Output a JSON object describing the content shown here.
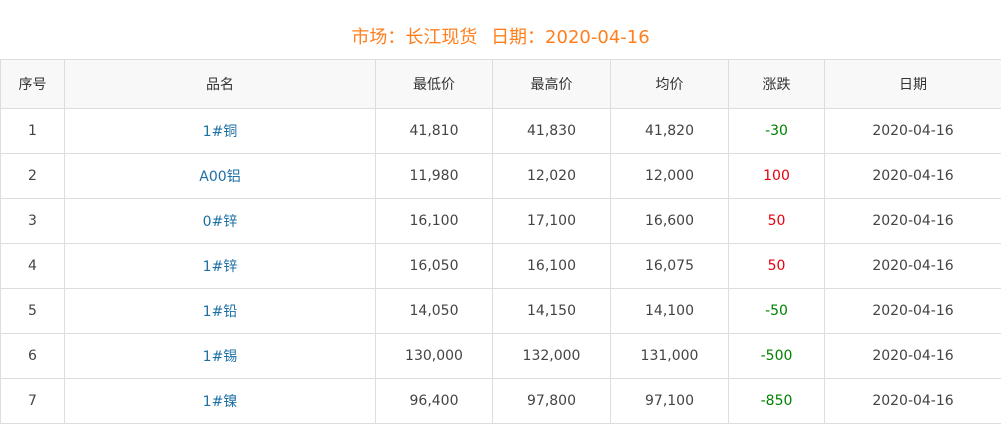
{
  "title": {
    "market": "市场：长江现货",
    "date": "日期：2020-04-16"
  },
  "colors": {
    "title": "#ff7f1e",
    "link": "#1d6fa5",
    "up": "#e4000f",
    "down": "#008000"
  },
  "table": {
    "headers": [
      "序号",
      "品名",
      "最低价",
      "最高价",
      "均价",
      "涨跌",
      "日期"
    ],
    "rows": [
      {
        "index": "1",
        "name": "1#铜",
        "low": "41,810",
        "high": "41,830",
        "avg": "41,820",
        "change": "-30",
        "date": "2020-04-16"
      },
      {
        "index": "2",
        "name": "A00铝",
        "low": "11,980",
        "high": "12,020",
        "avg": "12,000",
        "change": "100",
        "date": "2020-04-16"
      },
      {
        "index": "3",
        "name": "0#锌",
        "low": "16,100",
        "high": "17,100",
        "avg": "16,600",
        "change": "50",
        "date": "2020-04-16"
      },
      {
        "index": "4",
        "name": "1#锌",
        "low": "16,050",
        "high": "16,100",
        "avg": "16,075",
        "change": "50",
        "date": "2020-04-16"
      },
      {
        "index": "5",
        "name": "1#铅",
        "low": "14,050",
        "high": "14,150",
        "avg": "14,100",
        "change": "-50",
        "date": "2020-04-16"
      },
      {
        "index": "6",
        "name": "1#锡",
        "low": "130,000",
        "high": "132,000",
        "avg": "131,000",
        "change": "-500",
        "date": "2020-04-16"
      },
      {
        "index": "7",
        "name": "1#镍",
        "low": "96,400",
        "high": "97,800",
        "avg": "97,100",
        "change": "-850",
        "date": "2020-04-16"
      }
    ]
  }
}
